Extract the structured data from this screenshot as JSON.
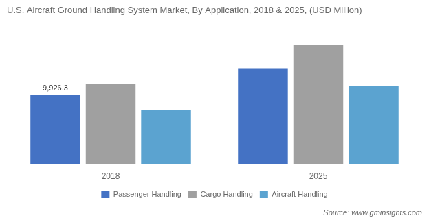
{
  "chart_data": {
    "type": "bar",
    "title": "U.S. Aircraft Ground Handling System Market, By Application, 2018 & 2025, (USD Million)",
    "categories": [
      "2018",
      "2025"
    ],
    "series": [
      {
        "name": "Passenger Handling",
        "color": "#4472c4",
        "values": [
          9926.3,
          13800.0
        ]
      },
      {
        "name": "Cargo Handling",
        "color": "#a0a0a0",
        "values": [
          11500.0,
          17200.0
        ]
      },
      {
        "name": "Aircraft Handling",
        "color": "#5ba3d0",
        "values": [
          7800.0,
          11200.0
        ]
      }
    ],
    "ylim": [
      0,
      20296
    ],
    "grid": false,
    "legend": "bottom",
    "tick_labels": "x",
    "annotations": [
      {
        "text": "9,926.3",
        "category": "2018",
        "series": "Passenger Handling"
      }
    ],
    "source": "Source: www.gminsights.com"
  }
}
